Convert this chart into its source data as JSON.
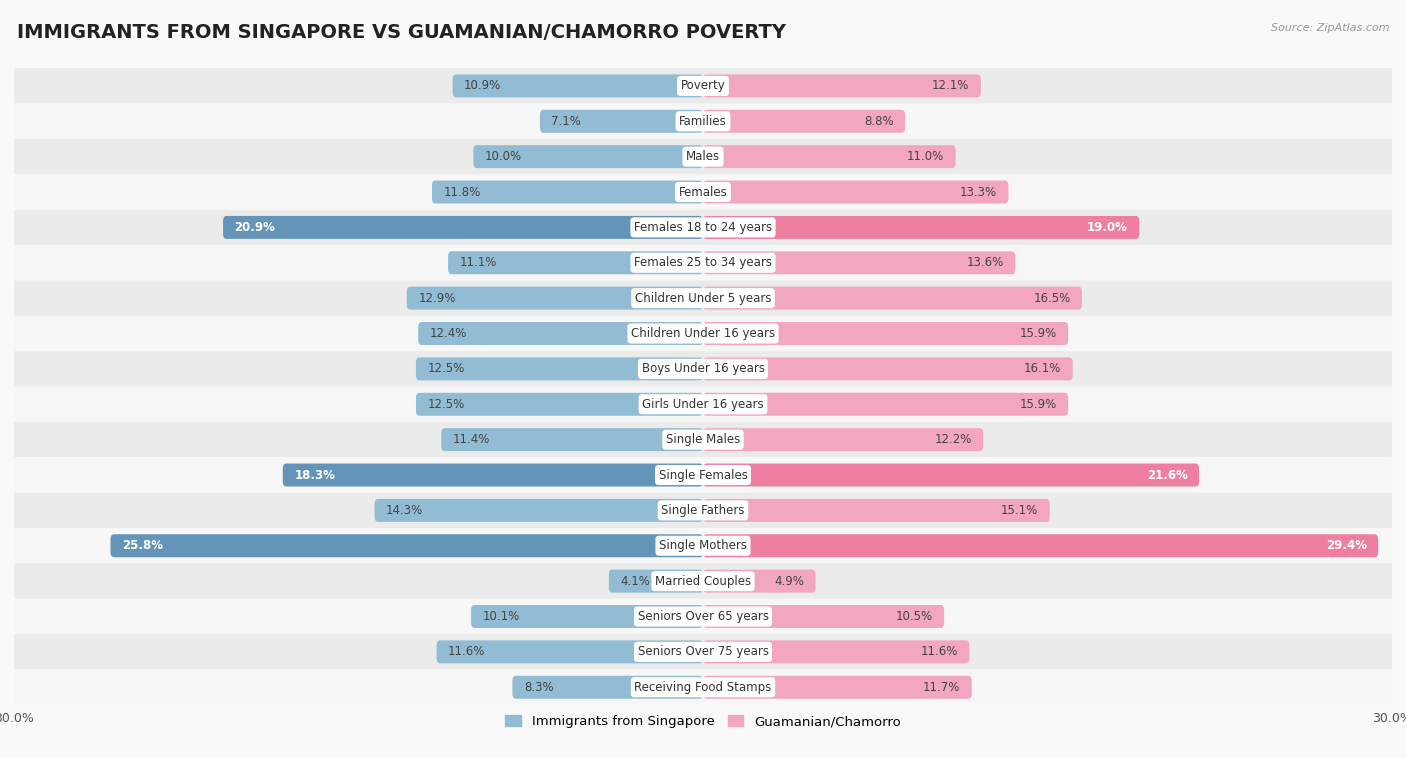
{
  "title": "IMMIGRANTS FROM SINGAPORE VS GUAMANIAN/CHAMORRO POVERTY",
  "source": "Source: ZipAtlas.com",
  "categories": [
    "Poverty",
    "Families",
    "Males",
    "Females",
    "Females 18 to 24 years",
    "Females 25 to 34 years",
    "Children Under 5 years",
    "Children Under 16 years",
    "Boys Under 16 years",
    "Girls Under 16 years",
    "Single Males",
    "Single Females",
    "Single Fathers",
    "Single Mothers",
    "Married Couples",
    "Seniors Over 65 years",
    "Seniors Over 75 years",
    "Receiving Food Stamps"
  ],
  "left_values": [
    10.9,
    7.1,
    10.0,
    11.8,
    20.9,
    11.1,
    12.9,
    12.4,
    12.5,
    12.5,
    11.4,
    18.3,
    14.3,
    25.8,
    4.1,
    10.1,
    11.6,
    8.3
  ],
  "right_values": [
    12.1,
    8.8,
    11.0,
    13.3,
    19.0,
    13.6,
    16.5,
    15.9,
    16.1,
    15.9,
    12.2,
    21.6,
    15.1,
    29.4,
    4.9,
    10.5,
    11.6,
    11.7
  ],
  "left_color_normal": "#92bcd4",
  "right_color_normal": "#f2a7be",
  "left_color_highlight": "#6495b8",
  "right_color_highlight": "#ef7fa0",
  "axis_max": 30.0,
  "left_label": "Immigrants from Singapore",
  "right_label": "Guamanian/Chamorro",
  "background_color": "#f9f9f9",
  "row_even_color": "#ebebeb",
  "row_odd_color": "#f7f7f7",
  "highlight_rows": [
    4,
    11,
    13
  ],
  "title_fontsize": 14,
  "label_fontsize": 8.5,
  "value_fontsize": 8.5,
  "tick_fontsize": 9
}
